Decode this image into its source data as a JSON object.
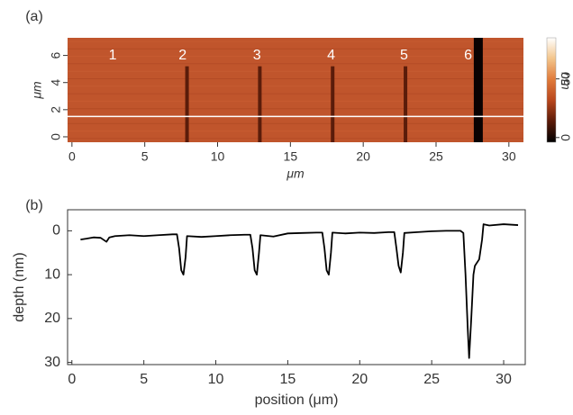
{
  "chart_data": [
    {
      "type": "image",
      "title": "(a)",
      "x_label": "μm",
      "y_label": "μm",
      "xlim": [
        -0.3,
        31
      ],
      "xticks": [
        0,
        5,
        10,
        15,
        20,
        25,
        30
      ],
      "ylim": [
        -0.4,
        7.3
      ],
      "yticks": [
        0,
        2,
        4,
        6
      ],
      "color": "#c0552c",
      "colormap": [
        "#000000",
        "#5a1a08",
        "#b8461c",
        "#e07a3a",
        "#f3c48a",
        "#ffffff"
      ],
      "clim": [
        -4,
        85
      ],
      "cticks": [
        0,
        50
      ],
      "c_label": "nm",
      "trench_x": [
        7.9,
        12.9,
        17.9,
        22.9,
        27.9
      ],
      "profile_line_y": 1.5,
      "annotations": [
        {
          "text": "1",
          "x": 2.8,
          "y": 6
        },
        {
          "text": "2",
          "x": 7.6,
          "y": 6
        },
        {
          "text": "3",
          "x": 12.7,
          "y": 6
        },
        {
          "text": "4",
          "x": 17.8,
          "y": 6
        },
        {
          "text": "5",
          "x": 22.8,
          "y": 6
        },
        {
          "text": "6",
          "x": 27.2,
          "y": 6
        }
      ]
    },
    {
      "type": "line",
      "title": "(b)",
      "x_label": "position (μm)",
      "y_label": "depth (nm)",
      "xlim": [
        -0.3,
        31.5
      ],
      "xticks": [
        0,
        5,
        10,
        15,
        20,
        25,
        30
      ],
      "ylim": [
        30.5,
        -4.8
      ],
      "yticks": [
        0,
        10,
        20,
        30
      ],
      "color": "#000000",
      "x": [
        0.6,
        1.0,
        1.5,
        2.0,
        2.4,
        2.6,
        3.0,
        4,
        5,
        6,
        7,
        7.3,
        7.45,
        7.6,
        7.75,
        7.9,
        8.0,
        9,
        10,
        11,
        12,
        12.4,
        12.55,
        12.7,
        12.85,
        13.0,
        13.1,
        14,
        15,
        16,
        17,
        17.4,
        17.55,
        17.7,
        17.85,
        18.0,
        18.1,
        19,
        20,
        21,
        22,
        22.4,
        22.55,
        22.7,
        22.85,
        23.0,
        23.1,
        24,
        25,
        26,
        27,
        27.2,
        27.35,
        27.5,
        27.6,
        27.75,
        27.9,
        28.0,
        28.1,
        28.3,
        28.5,
        28.6,
        29,
        30,
        31
      ],
      "y": [
        2,
        1.8,
        1.5,
        1.6,
        2.5,
        1.5,
        1.2,
        1.0,
        1.2,
        1.0,
        0.8,
        0.8,
        4,
        9,
        10,
        6,
        1.2,
        1.4,
        1.2,
        1.0,
        0.9,
        0.9,
        4,
        9,
        10,
        5,
        1.0,
        1.3,
        0.6,
        0.5,
        0.4,
        0.4,
        4,
        9,
        10,
        5,
        0.4,
        0.6,
        0.4,
        0.5,
        0.3,
        0.3,
        4,
        8,
        9.5,
        5,
        0.5,
        0.3,
        0.1,
        0,
        0,
        0.5,
        10,
        22,
        29,
        20,
        10,
        8,
        7.5,
        6.5,
        2,
        -1.5,
        -1.2,
        -1.5,
        -1.3
      ]
    }
  ]
}
